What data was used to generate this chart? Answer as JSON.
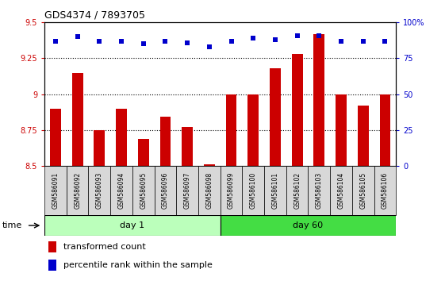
{
  "title": "GDS4374 / 7893705",
  "samples": [
    "GSM586091",
    "GSM586092",
    "GSM586093",
    "GSM586094",
    "GSM586095",
    "GSM586096",
    "GSM586097",
    "GSM586098",
    "GSM586099",
    "GSM586100",
    "GSM586101",
    "GSM586102",
    "GSM586103",
    "GSM586104",
    "GSM586105",
    "GSM586106"
  ],
  "red_values": [
    8.9,
    9.15,
    8.75,
    8.9,
    8.69,
    8.84,
    8.77,
    8.51,
    9.0,
    9.0,
    9.18,
    9.28,
    9.42,
    9.0,
    8.92,
    9.0
  ],
  "blue_pct": [
    87,
    90,
    87,
    87,
    85,
    87,
    86,
    83,
    87,
    89,
    88,
    91,
    91,
    87,
    87,
    87
  ],
  "ylim_left": [
    8.5,
    9.5
  ],
  "ylim_right": [
    0,
    100
  ],
  "yticks_left": [
    8.5,
    8.75,
    9.0,
    9.25,
    9.5
  ],
  "ytick_labels_left": [
    "8.5",
    "8.75",
    "9",
    "9.25",
    "9.5"
  ],
  "yticks_right": [
    0,
    25,
    50,
    75,
    100
  ],
  "ytick_labels_right": [
    "0",
    "25",
    "50",
    "75",
    "100%"
  ],
  "grid_ticks": [
    8.75,
    9.0,
    9.25
  ],
  "day1_count": 8,
  "day1_label": "day 1",
  "day60_label": "day 60",
  "time_label": "time",
  "legend_red": "transformed count",
  "legend_blue": "percentile rank within the sample",
  "bar_color": "#cc0000",
  "dot_color": "#0000cc",
  "day1_color": "#bbffbb",
  "day60_color": "#44dd44",
  "bar_bottom": 8.5,
  "bg_color": "#d8d8d8",
  "tick_label_color_left": "#cc0000",
  "tick_label_color_right": "#0000cc"
}
